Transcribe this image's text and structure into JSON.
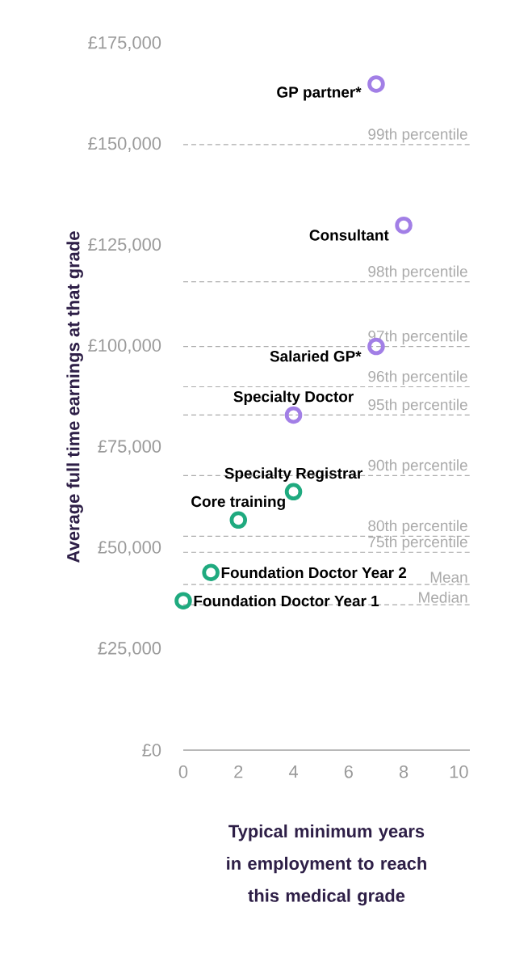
{
  "chart_data": {
    "type": "scatter",
    "xlabel": "Typical minimum years in employment to reach this medical grade",
    "ylabel": "Average full time earnings at that grade",
    "xlim": [
      0,
      10.4
    ],
    "ylim": [
      0,
      175000
    ],
    "xticks": [
      0,
      2,
      4,
      6,
      8,
      10
    ],
    "yticks": [
      {
        "value": 0,
        "label": "£0"
      },
      {
        "value": 25000,
        "label": "£25,000"
      },
      {
        "value": 50000,
        "label": "£50,000"
      },
      {
        "value": 75000,
        "label": "£75,000"
      },
      {
        "value": 100000,
        "label": "£100,000"
      },
      {
        "value": 125000,
        "label": "£125,000"
      },
      {
        "value": 150000,
        "label": "£150,000"
      },
      {
        "value": 175000,
        "label": "£175,000"
      }
    ],
    "marker": "circle",
    "series": [
      {
        "color": "#1faa7f",
        "x": [
          0,
          1,
          2,
          4
        ],
        "values": [
          37000,
          44000,
          57000,
          64000
        ]
      },
      {
        "color": "#a27fe6",
        "x": [
          4,
          7,
          7,
          8
        ],
        "values": [
          83000,
          100000,
          165000,
          130000
        ]
      }
    ],
    "annotations": [
      {
        "text": "Foundation Doctor Year 1",
        "x": 0,
        "y": 37000
      },
      {
        "text": "Foundation Doctor Year 2",
        "x": 1,
        "y": 44000
      },
      {
        "text": "Core training",
        "x": 2,
        "y": 57000
      },
      {
        "text": "Specialty Registrar",
        "x": 4,
        "y": 64000
      },
      {
        "text": "Specialty Doctor",
        "x": 4,
        "y": 83000
      },
      {
        "text": "Salaried GP*",
        "x": 7,
        "y": 100000
      },
      {
        "text": "GP partner*",
        "x": 7,
        "y": 165000
      },
      {
        "text": "Consultant",
        "x": 8,
        "y": 130000
      }
    ],
    "ref_lines": [
      {
        "axis": "y",
        "value": 150000,
        "label": "99th percentile",
        "color": "#aaaaaa",
        "line_style": "dashed"
      },
      {
        "axis": "y",
        "value": 116000,
        "label": "98th percentile",
        "color": "#aaaaaa",
        "line_style": "dashed"
      },
      {
        "axis": "y",
        "value": 100000,
        "label": "97th percentile",
        "color": "#aaaaaa",
        "line_style": "dashed"
      },
      {
        "axis": "y",
        "value": 90000,
        "label": "96th percentile",
        "color": "#aaaaaa",
        "line_style": "dashed"
      },
      {
        "axis": "y",
        "value": 83000,
        "label": "95th percentile",
        "color": "#aaaaaa",
        "line_style": "dashed"
      },
      {
        "axis": "y",
        "value": 68000,
        "label": "90th percentile",
        "color": "#aaaaaa",
        "line_style": "dashed"
      },
      {
        "axis": "y",
        "value": 53000,
        "label": "80th percentile",
        "color": "#aaaaaa",
        "line_style": "dashed"
      },
      {
        "axis": "y",
        "value": 49000,
        "label": "75th percentile",
        "color": "#aaaaaa",
        "line_style": "dashed"
      },
      {
        "axis": "y",
        "value": 41000,
        "label": "Mean",
        "color": "#aaaaaa",
        "line_style": "dashed"
      },
      {
        "axis": "y",
        "value": 36000,
        "label": "Median",
        "color": "#aaaaaa",
        "line_style": "dashed"
      }
    ]
  }
}
